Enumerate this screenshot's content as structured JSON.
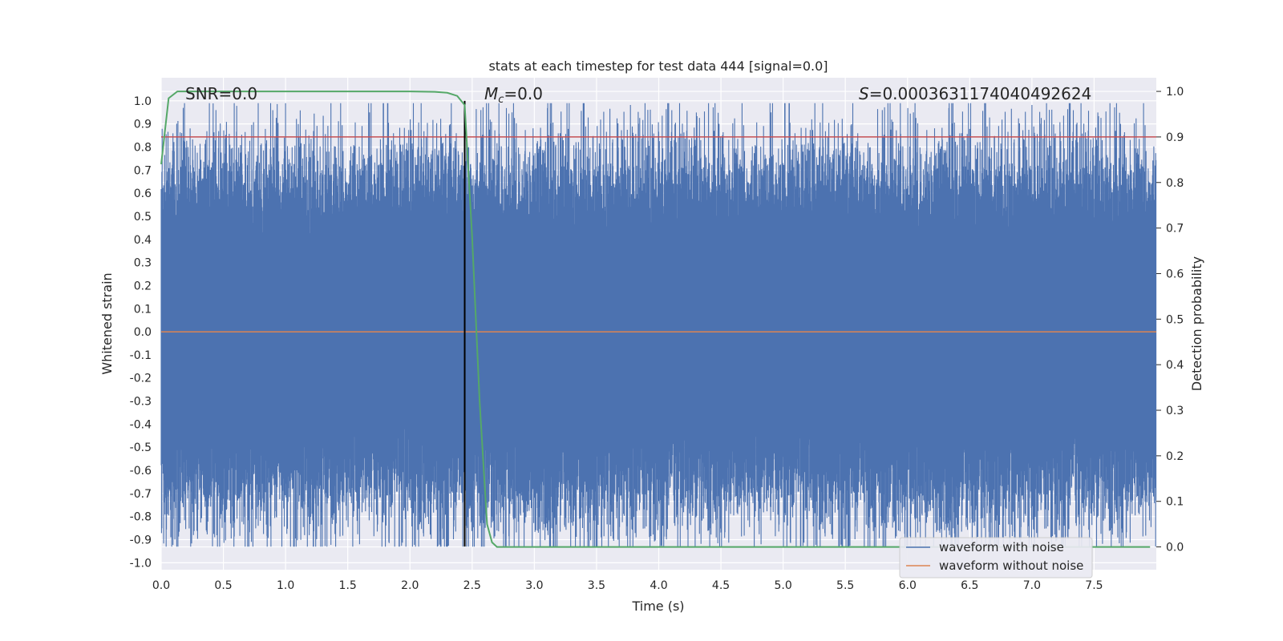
{
  "chart_data": {
    "type": "line",
    "title": "stats at each timestep for test data 444 [signal=0.0]",
    "xlabel": "Time (s)",
    "ylabel": "Whitened strain",
    "y2label": "Detection probability",
    "xlim": [
      0.0,
      8.0
    ],
    "ylim": [
      -1.03,
      1.1
    ],
    "y2lim": [
      -0.05,
      1.03
    ],
    "xticks": [
      "0.0",
      "0.5",
      "1.0",
      "1.5",
      "2.0",
      "2.5",
      "3.0",
      "3.5",
      "4.0",
      "4.5",
      "5.0",
      "5.5",
      "6.0",
      "6.5",
      "7.0",
      "7.5"
    ],
    "yticks": [
      "1.0",
      "0.9",
      "0.8",
      "0.7",
      "0.6",
      "0.5",
      "0.4",
      "0.3",
      "0.2",
      "0.1",
      "0.0",
      "-0.1",
      "-0.2",
      "-0.3",
      "-0.4",
      "-0.5",
      "-0.6",
      "-0.7",
      "-0.8",
      "-0.9",
      "-1.0"
    ],
    "y2ticks": [
      "1.0",
      "0.9",
      "0.8",
      "0.7",
      "0.6",
      "0.5",
      "0.4",
      "0.3",
      "0.2",
      "0.1",
      "0.0"
    ],
    "annotations": {
      "snr": "SNR=0.0",
      "mc_symbol": "M",
      "mc_sub": "c",
      "mc_value": "=0.0",
      "s_symbol": "S",
      "s_value": "=0.0003631174040492624"
    },
    "series": [
      {
        "name": "waveform with noise",
        "color": "#4c72b0",
        "note": "whitened noise strain, peaks up to ~1.0 / down to ~-0.93"
      },
      {
        "name": "waveform without noise",
        "color": "#dd8452",
        "values": "flat at 0.0"
      },
      {
        "name": "detection probability",
        "color": "#55a868",
        "axis": "right",
        "x": [
          0.0,
          0.06,
          0.13,
          0.3,
          1.0,
          2.0,
          2.2,
          2.3,
          2.38,
          2.44,
          2.5,
          2.56,
          2.62,
          2.66,
          2.7,
          2.8,
          3.5,
          5.0,
          7.95
        ],
        "values": [
          0.84,
          0.985,
          1.0,
          1.0,
          1.0,
          1.0,
          0.999,
          0.997,
          0.99,
          0.97,
          0.68,
          0.32,
          0.05,
          0.01,
          0.0,
          0.0,
          0.0,
          0.0,
          0.0
        ]
      }
    ],
    "threshold": {
      "color": "#c44e52",
      "value_right_axis": 0.9
    },
    "marker_time": 2.44,
    "legend": {
      "placement": "lower-right",
      "entries": [
        "waveform with noise",
        "waveform without noise"
      ]
    }
  }
}
